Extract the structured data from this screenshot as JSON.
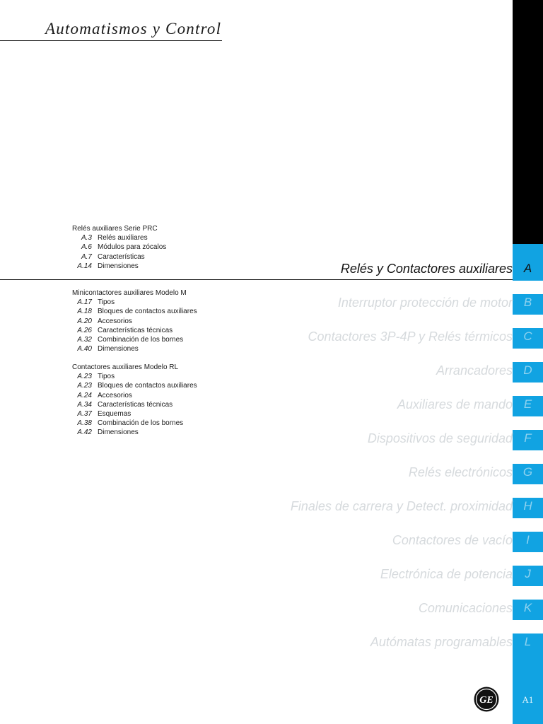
{
  "header": {
    "title": "Automatismos y Control"
  },
  "toc": [
    {
      "title": "Relés auxiliares Serie PRC",
      "items": [
        {
          "page": "A.3",
          "label": "Relés auxiliares"
        },
        {
          "page": "A.6",
          "label": "Módulos para zócalos"
        },
        {
          "page": "A.7",
          "label": "Características"
        },
        {
          "page": "A.14",
          "label": "Dimensiones"
        }
      ]
    },
    {
      "title": "Minicontactores auxiliares Modelo M",
      "items": [
        {
          "page": "A.17",
          "label": "Tipos"
        },
        {
          "page": "A.18",
          "label": "Bloques de contactos auxiliares"
        },
        {
          "page": "A.20",
          "label": "Accesorios"
        },
        {
          "page": "A.26",
          "label": "Características técnicas"
        },
        {
          "page": "A.32",
          "label": "Combinación de los bornes"
        },
        {
          "page": "A.40",
          "label": "Dimensiones"
        }
      ]
    },
    {
      "title": "Contactores auxiliares Modelo RL",
      "items": [
        {
          "page": "A.23",
          "label": "Tipos"
        },
        {
          "page": "A.23",
          "label": "Bloques de contactos auxiliares"
        },
        {
          "page": "A.24",
          "label": "Accesorios"
        },
        {
          "page": "A.34",
          "label": "Características técnicas"
        },
        {
          "page": "A.37",
          "label": "Esquemas"
        },
        {
          "page": "A.38",
          "label": "Combinación de los bornes"
        },
        {
          "page": "A.42",
          "label": "Dimensiones"
        }
      ]
    }
  ],
  "sections": [
    {
      "name": "Relés y Contactores auxiliares",
      "letter": "A",
      "active": true
    },
    {
      "name": "Interruptor protección de motor",
      "letter": "B"
    },
    {
      "name": "Contactores 3P-4P y Relés térmicos",
      "letter": "C"
    },
    {
      "name": "Arrancadores",
      "letter": "D"
    },
    {
      "name": "Auxiliares de mando",
      "letter": "E"
    },
    {
      "name": "Dispositivos de seguridad",
      "letter": "F"
    },
    {
      "name": "Relés electrónicos",
      "letter": "G"
    },
    {
      "name": "Finales de carrera y Detect. proximidad",
      "letter": "H"
    },
    {
      "name": "Contactores de vacío",
      "letter": "I"
    },
    {
      "name": "Electrónica de potencia",
      "letter": "J"
    },
    {
      "name": "Comunicaciones",
      "letter": "K"
    },
    {
      "name": "Autómatas programables",
      "letter": "L"
    }
  ],
  "footer": {
    "page_number": "A1",
    "logo": "ge-logo"
  },
  "colors": {
    "tab_blue": "#11a3e2",
    "inactive_text": "#d6dadd"
  }
}
